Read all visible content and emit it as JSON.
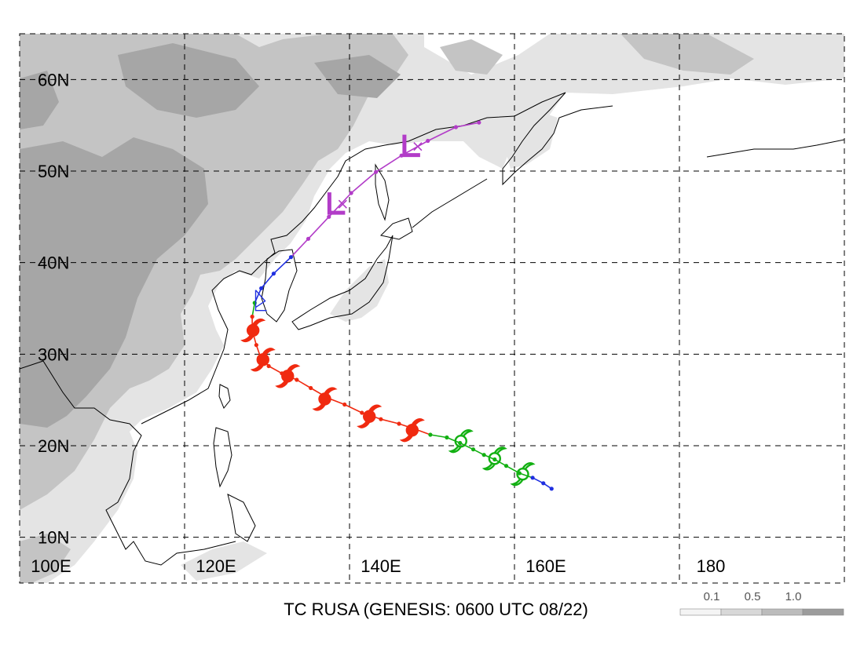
{
  "map": {
    "title": "TC RUSA (GENESIS: 0600 UTC 08/22)",
    "lon_range": [
      100,
      200
    ],
    "lat_range": [
      5,
      65
    ],
    "lon_ticks": [
      {
        "value": 100,
        "label": "100E"
      },
      {
        "value": 120,
        "label": "120E"
      },
      {
        "value": 140,
        "label": "140E"
      },
      {
        "value": 160,
        "label": "160E"
      },
      {
        "value": 180,
        "label": "180"
      }
    ],
    "lat_ticks": [
      {
        "value": 10,
        "label": "10N"
      },
      {
        "value": 20,
        "label": "20N"
      },
      {
        "value": 30,
        "label": "30N"
      },
      {
        "value": 40,
        "label": "40N"
      },
      {
        "value": 50,
        "label": "50N"
      },
      {
        "value": 60,
        "label": "60N"
      }
    ],
    "grid": "dashed",
    "colors": {
      "depression": "#1f2fe0",
      "tropical_storm": "#12b012",
      "typhoon": "#f02a10",
      "extratropical": "#b23cc8",
      "coast": "#000000",
      "shade_light": "#e4e4e4",
      "shade_mid": "#c4c4c4",
      "shade_dark": "#a6a6a6"
    },
    "legend": {
      "position": "bottom-right",
      "labels": [
        "0.1",
        "0.5",
        "1.0"
      ]
    },
    "track": [
      {
        "lon": 164.5,
        "lat": 15.3,
        "stage": "depression"
      },
      {
        "lon": 163.5,
        "lat": 15.9,
        "stage": "depression"
      },
      {
        "lon": 162.2,
        "lat": 16.5,
        "stage": "depression"
      },
      {
        "lon": 160.6,
        "lat": 17.0,
        "stage": "tropical_storm"
      },
      {
        "lon": 159.0,
        "lat": 17.8,
        "stage": "tropical_storm"
      },
      {
        "lon": 157.6,
        "lat": 18.5,
        "stage": "tropical_storm"
      },
      {
        "lon": 156.3,
        "lat": 19.0,
        "stage": "tropical_storm"
      },
      {
        "lon": 155.0,
        "lat": 19.6,
        "stage": "tropical_storm"
      },
      {
        "lon": 153.4,
        "lat": 20.3,
        "stage": "tropical_storm"
      },
      {
        "lon": 151.8,
        "lat": 20.9,
        "stage": "tropical_storm"
      },
      {
        "lon": 149.8,
        "lat": 21.2,
        "stage": "tropical_storm"
      },
      {
        "lon": 148.0,
        "lat": 21.8,
        "stage": "typhoon"
      },
      {
        "lon": 146.0,
        "lat": 22.4,
        "stage": "typhoon"
      },
      {
        "lon": 143.8,
        "lat": 22.9,
        "stage": "typhoon"
      },
      {
        "lon": 141.5,
        "lat": 23.6,
        "stage": "typhoon"
      },
      {
        "lon": 139.4,
        "lat": 24.5,
        "stage": "typhoon"
      },
      {
        "lon": 137.4,
        "lat": 25.2,
        "stage": "typhoon"
      },
      {
        "lon": 135.3,
        "lat": 26.3,
        "stage": "typhoon"
      },
      {
        "lon": 133.6,
        "lat": 27.2,
        "stage": "typhoon"
      },
      {
        "lon": 131.8,
        "lat": 27.9,
        "stage": "typhoon"
      },
      {
        "lon": 130.2,
        "lat": 28.7,
        "stage": "typhoon"
      },
      {
        "lon": 129.2,
        "lat": 29.7,
        "stage": "typhoon"
      },
      {
        "lon": 128.7,
        "lat": 31.0,
        "stage": "typhoon"
      },
      {
        "lon": 128.2,
        "lat": 32.6,
        "stage": "typhoon"
      },
      {
        "lon": 128.2,
        "lat": 34.1,
        "stage": "typhoon"
      },
      {
        "lon": 128.5,
        "lat": 35.6,
        "stage": "tropical_storm"
      },
      {
        "lon": 129.3,
        "lat": 37.2,
        "stage": "depression"
      },
      {
        "lon": 130.8,
        "lat": 38.8,
        "stage": "depression"
      },
      {
        "lon": 132.9,
        "lat": 40.6,
        "stage": "depression"
      },
      {
        "lon": 135.0,
        "lat": 42.6,
        "stage": "extratropical"
      },
      {
        "lon": 137.5,
        "lat": 45.0,
        "stage": "extratropical"
      },
      {
        "lon": 140.2,
        "lat": 47.6,
        "stage": "extratropical"
      },
      {
        "lon": 143.2,
        "lat": 49.9,
        "stage": "extratropical"
      },
      {
        "lon": 146.3,
        "lat": 51.7,
        "stage": "extratropical"
      },
      {
        "lon": 149.5,
        "lat": 53.3,
        "stage": "extratropical"
      },
      {
        "lon": 152.9,
        "lat": 54.8,
        "stage": "extratropical"
      },
      {
        "lon": 155.7,
        "lat": 55.3,
        "stage": "extratropical"
      }
    ],
    "symbols": [
      {
        "kind": "depression",
        "lon": 129.0,
        "lat": 35.8
      },
      {
        "kind": "tropical_storm",
        "lon": 161.0,
        "lat": 16.9
      },
      {
        "kind": "tropical_storm",
        "lon": 157.6,
        "lat": 18.6
      },
      {
        "kind": "tropical_storm",
        "lon": 153.5,
        "lat": 20.5
      },
      {
        "kind": "typhoon",
        "lon": 147.6,
        "lat": 21.7
      },
      {
        "kind": "typhoon",
        "lon": 142.4,
        "lat": 23.2
      },
      {
        "kind": "typhoon",
        "lon": 137.0,
        "lat": 25.1
      },
      {
        "kind": "typhoon",
        "lon": 132.5,
        "lat": 27.6
      },
      {
        "kind": "typhoon",
        "lon": 129.5,
        "lat": 29.4
      },
      {
        "kind": "typhoon",
        "lon": 128.3,
        "lat": 32.6
      },
      {
        "kind": "low",
        "lon": 138.7,
        "lat": 46.3
      },
      {
        "kind": "low",
        "lon": 147.8,
        "lat": 52.6
      }
    ]
  }
}
